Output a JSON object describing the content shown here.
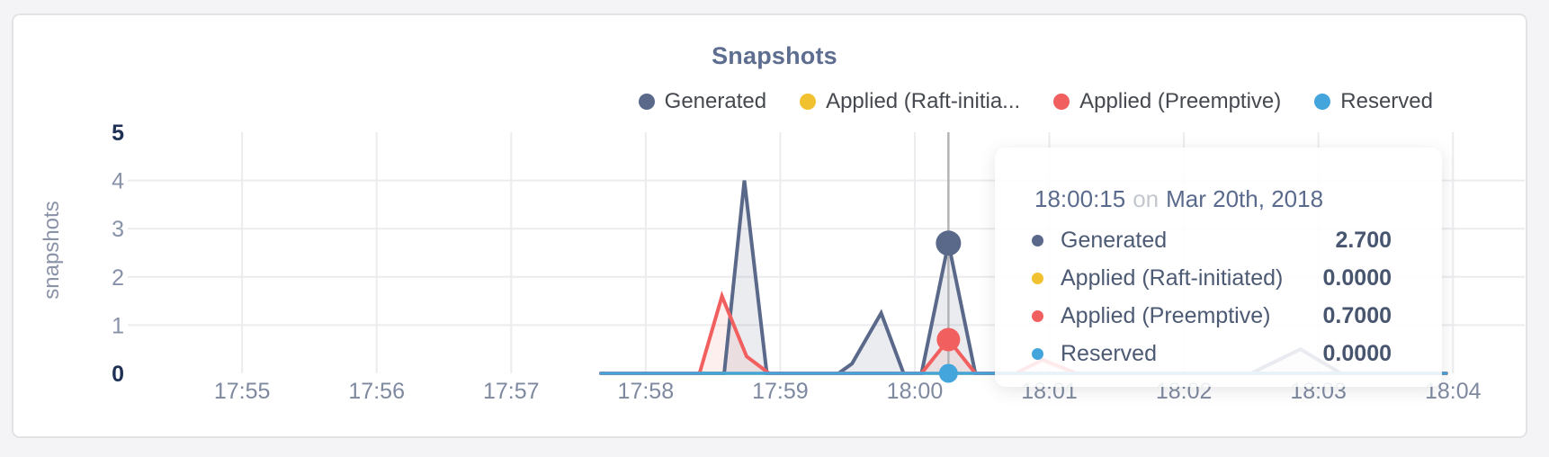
{
  "chart_data": {
    "type": "area",
    "title": "Snapshots",
    "ylabel": "snapshots",
    "ylim": [
      0,
      5
    ],
    "yticks": [
      0,
      1,
      2,
      3,
      4,
      5
    ],
    "yticks_bold": [
      0,
      5
    ],
    "grid": true,
    "legend_position": "top-right",
    "x_axis": {
      "tick_labels": [
        "17:55",
        "17:56",
        "17:57",
        "17:58",
        "17:59",
        "18:00",
        "18:01",
        "18:02",
        "18:03",
        "18:04"
      ],
      "tick_seconds": [
        0,
        60,
        120,
        180,
        240,
        300,
        360,
        420,
        480,
        540
      ],
      "domain_seconds": [
        -51,
        572
      ]
    },
    "series": [
      {
        "name": "Generated",
        "color": "#5a698a",
        "fill": "rgba(90,105,138,0.13)",
        "line_width": 4,
        "points_seconds_value": [
          [
            160,
            0
          ],
          [
            215,
            0
          ],
          [
            224,
            4
          ],
          [
            234,
            0
          ],
          [
            266,
            0
          ],
          [
            272,
            0.2
          ],
          [
            285,
            1.25
          ],
          [
            295,
            0
          ],
          [
            303,
            0
          ],
          [
            315,
            2.7
          ],
          [
            327,
            0
          ],
          [
            450,
            0
          ],
          [
            472,
            0.5
          ],
          [
            490,
            0
          ],
          [
            537,
            0
          ]
        ]
      },
      {
        "name": "Applied (Raft-initiated)",
        "color": "#f1c12f",
        "fill": null,
        "line_width": 3.5,
        "points_seconds_value": [
          [
            160,
            0
          ],
          [
            537,
            0
          ]
        ]
      },
      {
        "name": "Applied (Preemptive)",
        "color": "#f25f5f",
        "fill": "rgba(242,95,95,0.10)",
        "line_width": 4,
        "points_seconds_value": [
          [
            160,
            0
          ],
          [
            204,
            0
          ],
          [
            214,
            1.6
          ],
          [
            225,
            0.35
          ],
          [
            235,
            0
          ],
          [
            303,
            0
          ],
          [
            315,
            0.7
          ],
          [
            327,
            0
          ],
          [
            345,
            0
          ],
          [
            357,
            0.28
          ],
          [
            372,
            0
          ],
          [
            537,
            0
          ]
        ]
      },
      {
        "name": "Reserved",
        "color": "#43a5db",
        "fill": null,
        "line_width": 3.5,
        "points_seconds_value": [
          [
            160,
            0
          ],
          [
            537,
            0
          ]
        ]
      }
    ],
    "highlight": {
      "time_seconds": 315,
      "dots": [
        {
          "series": "Generated",
          "value": 2.7,
          "radius": 14
        },
        {
          "series": "Applied (Preemptive)",
          "value": 0.7,
          "radius": 13
        },
        {
          "series": "Reserved",
          "value": 0,
          "radius": 10.5
        }
      ]
    },
    "legend": [
      {
        "label": "Generated",
        "color": "#5a698a"
      },
      {
        "label": "Applied (Raft-initia...",
        "color": "#f1c12f"
      },
      {
        "label": "Applied (Preemptive)",
        "color": "#f25f5f"
      },
      {
        "label": "Reserved",
        "color": "#43a5db"
      }
    ]
  },
  "tooltip": {
    "time": "18:00:15",
    "connector": "on",
    "date": "Mar 20th, 2018",
    "rows": [
      {
        "label": "Generated",
        "value": "2.700",
        "color": "#5a698a"
      },
      {
        "label": "Applied (Raft-initiated)",
        "value": "0.0000",
        "color": "#f1c12f"
      },
      {
        "label": "Applied (Preemptive)",
        "value": "0.7000",
        "color": "#f25f5f"
      },
      {
        "label": "Reserved",
        "value": "0.0000",
        "color": "#43a5db"
      }
    ]
  },
  "colors": {
    "page_bg": "#f4f4f6",
    "card_bg": "#ffffff",
    "card_border": "#e3e3e6",
    "title": "#5e6e90",
    "grid": "#ececef",
    "crosshair": "#b4b4b6",
    "axis_tick": "#8791a8",
    "axis_tick_bold": "#1e3054",
    "x_tick": "#7e89a0",
    "legend_text": "#45494f"
  }
}
